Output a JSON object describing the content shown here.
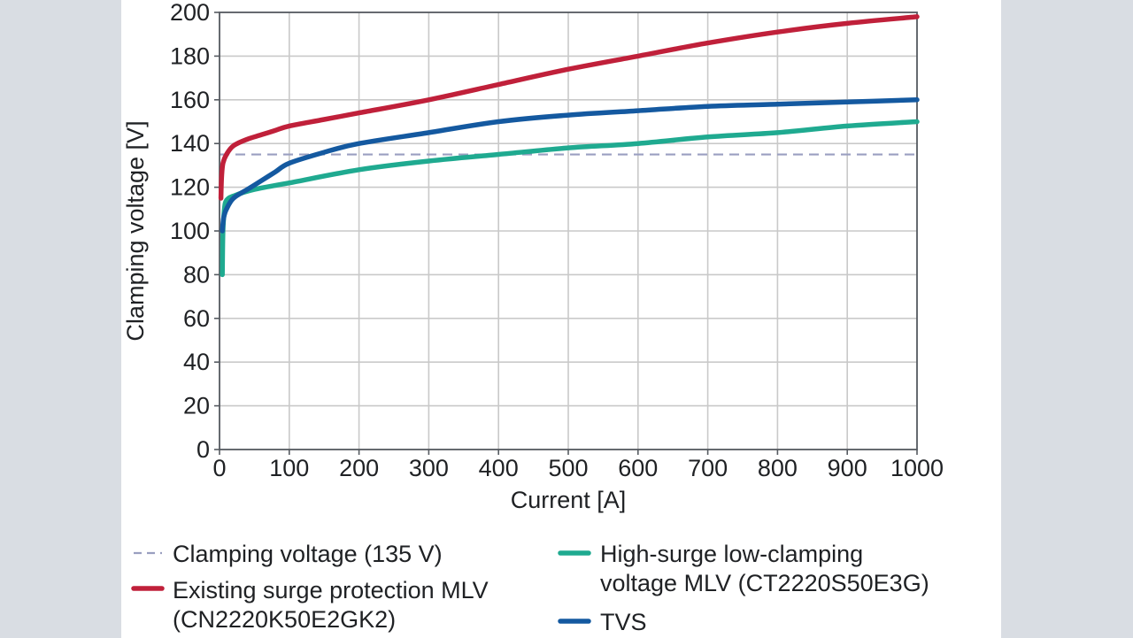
{
  "chart_data": {
    "type": "line",
    "xlabel": "Current [A]",
    "ylabel": "Clamping voltage [V]",
    "xlim": [
      0,
      1000
    ],
    "ylim": [
      0,
      200
    ],
    "x_ticks": [
      0,
      100,
      200,
      300,
      400,
      500,
      600,
      700,
      800,
      900,
      1000
    ],
    "y_ticks": [
      0,
      20,
      40,
      60,
      80,
      100,
      120,
      140,
      160,
      180,
      200
    ],
    "grid": true,
    "reference_line": {
      "label": "Clamping voltage (135 V)",
      "y": 135,
      "color": "#9a9fc0",
      "style": "dashed"
    },
    "series": [
      {
        "name": "Existing surge protection MLV (CN2220K50E2GK2)",
        "legend_lines": [
          "Existing surge protection MLV",
          "(CN2220K50E2GK2)"
        ],
        "color": "#c0203a",
        "points": [
          [
            2,
            115
          ],
          [
            3,
            125
          ],
          [
            5,
            131
          ],
          [
            10,
            135
          ],
          [
            20,
            139
          ],
          [
            40,
            142
          ],
          [
            60,
            144
          ],
          [
            80,
            146
          ],
          [
            100,
            148
          ],
          [
            150,
            151
          ],
          [
            200,
            154
          ],
          [
            300,
            160
          ],
          [
            400,
            167
          ],
          [
            500,
            174
          ],
          [
            600,
            180
          ],
          [
            700,
            186
          ],
          [
            800,
            191
          ],
          [
            900,
            195
          ],
          [
            1000,
            198
          ]
        ]
      },
      {
        "name": "High-surge low-clamping voltage MLV (CT2220S50E3G)",
        "legend_lines": [
          "High-surge low-clamping",
          "voltage MLV (CT2220S50E3G)"
        ],
        "color": "#1faa90",
        "points": [
          [
            4,
            80
          ],
          [
            5,
            100
          ],
          [
            7,
            110
          ],
          [
            10,
            114
          ],
          [
            20,
            116
          ],
          [
            50,
            119
          ],
          [
            100,
            122
          ],
          [
            200,
            128
          ],
          [
            300,
            132
          ],
          [
            400,
            135
          ],
          [
            500,
            138
          ],
          [
            600,
            140
          ],
          [
            700,
            143
          ],
          [
            800,
            145
          ],
          [
            900,
            148
          ],
          [
            1000,
            150
          ]
        ]
      },
      {
        "name": "TVS",
        "legend_lines": [
          "TVS"
        ],
        "color": "#1459a0",
        "points": [
          [
            4,
            100
          ],
          [
            6,
            106
          ],
          [
            10,
            110
          ],
          [
            20,
            115
          ],
          [
            40,
            119
          ],
          [
            60,
            123
          ],
          [
            80,
            127
          ],
          [
            100,
            131
          ],
          [
            150,
            136
          ],
          [
            200,
            140
          ],
          [
            300,
            145
          ],
          [
            400,
            150
          ],
          [
            500,
            153
          ],
          [
            600,
            155
          ],
          [
            700,
            157
          ],
          [
            800,
            158
          ],
          [
            900,
            159
          ],
          [
            1000,
            160
          ]
        ]
      }
    ]
  }
}
